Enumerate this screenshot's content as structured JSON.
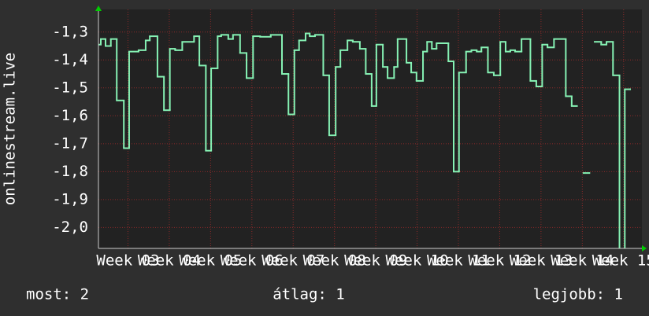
{
  "chart_data": {
    "type": "line",
    "step": true,
    "y_label": "onlinestream.live",
    "x": [
      0,
      0.4,
      1.2,
      2.1,
      3.1,
      4.3,
      5.2,
      6.8,
      8.0,
      8.7,
      10.0,
      11.1,
      12.1,
      13.0,
      14.2,
      16.2,
      17.1,
      18.2,
      19.1,
      20.2,
      20.8,
      22.0,
      22.8,
      24.0,
      25.1,
      26.2,
      27.4,
      29.2,
      31.1,
      32.2,
      33.2,
      34.0,
      35.1,
      35.8,
      36.7,
      38.1,
      39.1,
      40.2,
      41.0,
      42.2,
      43.1,
      44.3,
      45.3,
      46.3,
      47.1,
      48.2,
      49.0,
      50.1,
      50.7,
      52.2,
      53.0,
      53.9,
      55.0,
      55.7,
      56.5,
      57.3,
      59.3,
      60.2,
      61.1,
      62.3,
      63.2,
      64.1,
      64.9,
      66.0,
      67.0,
      68.1,
      69.0,
      69.8,
      70.6,
      71.7,
      73.2,
      74.2,
      75.2,
      76.1,
      77.2,
      79.2,
      80.2,
      81.1,
      82.2,
      83.2,
      84.1,
      85.2,
      86.1,
      87.2,
      88.3,
      89.2,
      90.1
    ],
    "series": [
      {
        "color": "#86f2b4",
        "values": [
          -1.345,
          -1.325,
          -1.35,
          -1.325,
          -1.545,
          -1.716,
          -1.37,
          -1.365,
          -1.33,
          -1.315,
          -1.46,
          -1.58,
          -1.36,
          -1.365,
          -1.335,
          -1.315,
          -1.42,
          -1.725,
          -1.43,
          -1.315,
          -1.31,
          -1.325,
          -1.31,
          -1.375,
          -1.465,
          -1.315,
          -1.317,
          -1.31,
          -1.45,
          -1.595,
          -1.365,
          -1.33,
          -1.305,
          -1.315,
          -1.31,
          -1.455,
          -1.67,
          -1.425,
          -1.365,
          -1.33,
          -1.335,
          -1.36,
          -1.45,
          -1.565,
          -1.345,
          -1.425,
          -1.465,
          -1.425,
          -1.325,
          -1.41,
          -1.445,
          -1.475,
          -1.37,
          -1.335,
          -1.36,
          -1.34,
          -1.405,
          -1.8,
          -1.445,
          -1.37,
          -1.365,
          -1.37,
          -1.355,
          -1.445,
          -1.455,
          -1.335,
          -1.37,
          -1.365,
          -1.37,
          -1.325,
          -1.475,
          -1.495,
          -1.345,
          -1.355,
          -1.325,
          -1.53,
          -1.565,
          null,
          -1.805,
          null,
          -1.335,
          -1.345,
          -1.335,
          -1.455,
          -2.1,
          -1.505,
          -1.505
        ]
      }
    ],
    "xlim": [
      0,
      92.1
    ],
    "xticks": [
      {
        "value": 5,
        "label": "Week 03"
      },
      {
        "value": 12,
        "label": "Week 04"
      },
      {
        "value": 19,
        "label": "Week 05"
      },
      {
        "value": 26,
        "label": "Week 06"
      },
      {
        "value": 33,
        "label": "Week 07"
      },
      {
        "value": 40,
        "label": "Week 08"
      },
      {
        "value": 47,
        "label": "Week 09"
      },
      {
        "value": 54,
        "label": "Week 10"
      },
      {
        "value": 61,
        "label": "Week 11"
      },
      {
        "value": 68,
        "label": "Week 12"
      },
      {
        "value": 75,
        "label": "Week 13"
      },
      {
        "value": 82,
        "label": "Week 14"
      },
      {
        "value": 89,
        "label": "Week 15"
      }
    ],
    "ylim": [
      -2.075,
      -1.219
    ],
    "yticks": [
      {
        "value": -1.3,
        "label": "-1,3"
      },
      {
        "value": -1.4,
        "label": "-1,4"
      },
      {
        "value": -1.5,
        "label": "-1,5"
      },
      {
        "value": -1.6,
        "label": "-1,6"
      },
      {
        "value": -1.7,
        "label": "-1,7"
      },
      {
        "value": -1.8,
        "label": "-1,8"
      },
      {
        "value": -1.9,
        "label": "-1,9"
      },
      {
        "value": -2.0,
        "label": "-2,0"
      }
    ],
    "grid": true,
    "footer": [
      "most: 2",
      "átlag: 1",
      "legjobb: 1"
    ]
  }
}
